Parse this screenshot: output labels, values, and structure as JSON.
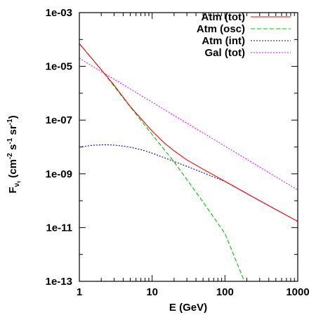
{
  "chart_data": {
    "type": "line",
    "xscale": "log",
    "yscale": "log",
    "xlim": [
      1,
      1000
    ],
    "ylim": [
      1e-13,
      0.001
    ],
    "xticks": [
      1,
      10,
      100,
      1000
    ],
    "xtick_labels": [
      "1",
      "10",
      "100",
      "1000"
    ],
    "yticks": [
      1e-13,
      1e-11,
      1e-09,
      1e-07,
      1e-05,
      0.001
    ],
    "ytick_labels": [
      "1e-13",
      "1e-11",
      "1e-09",
      "1e-07",
      "1e-05",
      "1e-03"
    ],
    "xlabel": "E (GeV)",
    "ylabel": {
      "base": "F",
      "sub": "ν",
      "subsub": "τ",
      "unit_open": " (cm",
      "e1": "-2",
      "mid1": " s",
      "e2": "-1",
      "mid2": " sr",
      "e3": "-1",
      "unit_close": ")"
    },
    "legend_position": "top-right",
    "grid": false,
    "series": [
      {
        "name": "Atm (tot)",
        "color": "#ff0000",
        "dash": "solid",
        "x": [
          1,
          1.5,
          2,
          3,
          5,
          7,
          10,
          15,
          20,
          30,
          50,
          100,
          200,
          500,
          1000
        ],
        "y": [
          7e-05,
          1.9e-05,
          7.5e-06,
          2e-06,
          3.2e-07,
          1.15e-07,
          3.9e-08,
          1.35e-08,
          7.2e-09,
          3.3e-09,
          1.5e-09,
          5.3e-10,
          1.85e-10,
          4.7e-11,
          1.7e-11
        ]
      },
      {
        "name": "Atm (osc)",
        "color": "#00c000",
        "dash": "dashed",
        "x": [
          1,
          2,
          5,
          10,
          20,
          50,
          100,
          185
        ],
        "y": [
          7e-05,
          7.5e-06,
          3.1e-07,
          2.9e-08,
          2.8e-09,
          9e-11,
          6e-12,
          1e-13
        ]
      },
      {
        "name": "Atm (int)",
        "color": "#0000c0",
        "dash": "dotted",
        "x": [
          1,
          1.5,
          2,
          2.5,
          3,
          4,
          5,
          7,
          10,
          15,
          20,
          30,
          50,
          100,
          200,
          500,
          1000
        ],
        "y": [
          1e-08,
          1.15e-08,
          1.2e-08,
          1.2e-08,
          1.17e-08,
          1.08e-08,
          9.8e-09,
          8e-09,
          5.9e-09,
          3.9e-09,
          2.9e-09,
          1.9e-09,
          1.1e-09,
          5.2e-10,
          1.85e-10,
          4.7e-11,
          1.7e-11
        ]
      },
      {
        "name": "Gal (tot)",
        "color": "#ff00ff",
        "dash": "dotted",
        "x": [
          1,
          1000
        ],
        "y": [
          2e-05,
          2.5e-10
        ]
      }
    ]
  }
}
